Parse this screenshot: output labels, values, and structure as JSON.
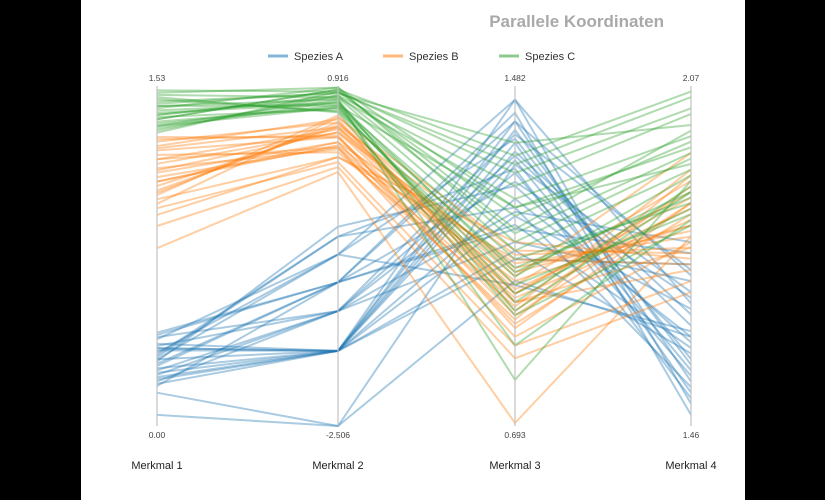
{
  "chart_data": {
    "type": "parallel-coordinates",
    "title": "Parallele Koordinaten",
    "legend_position": "top-center",
    "axes": [
      {
        "name": "Merkmal 1",
        "min_label": "0.00",
        "max_label": "1.53",
        "min": 0.0,
        "max": 1.53
      },
      {
        "name": "Merkmal 2",
        "min_label": "-2.506",
        "max_label": "0.916",
        "min": -2.506,
        "max": 0.916
      },
      {
        "name": "Merkmal 3",
        "min_label": "0.693",
        "max_label": "1.482",
        "min": 0.693,
        "max": 1.482
      },
      {
        "name": "Merkmal 4",
        "min_label": "1.46",
        "max_label": "2.07",
        "min": 1.46,
        "max": 2.07
      }
    ],
    "series": [
      {
        "name": "Spezies A",
        "color": "#1f77b4",
        "lines": [
          [
            0.05,
            -2.506,
            1.03,
            1.62
          ],
          [
            0.3,
            -1.75,
            1.35,
            1.52
          ],
          [
            0.35,
            -1.75,
            1.18,
            1.67
          ],
          [
            0.22,
            -1.75,
            1.1,
            1.59
          ],
          [
            0.18,
            -1.06,
            1.4,
            1.73
          ],
          [
            0.4,
            -1.35,
            1.28,
            1.55
          ],
          [
            0.26,
            -1.75,
            1.22,
            1.62
          ],
          [
            0.33,
            -0.78,
            1.45,
            1.5
          ],
          [
            0.15,
            -2.506,
            1.3,
            1.7
          ],
          [
            0.27,
            -1.06,
            1.15,
            1.77
          ],
          [
            0.37,
            -1.75,
            1.38,
            1.57
          ],
          [
            0.2,
            -1.35,
            1.32,
            1.64
          ],
          [
            0.31,
            -0.6,
            1.2,
            1.53
          ],
          [
            0.24,
            -1.75,
            1.08,
            1.75
          ],
          [
            0.42,
            -1.06,
            1.42,
            1.48
          ],
          [
            0.29,
            -0.5,
            1.25,
            1.61
          ],
          [
            0.34,
            -1.75,
            1.33,
            1.66
          ],
          [
            0.23,
            -1.35,
            1.12,
            1.72
          ],
          [
            0.39,
            -0.78,
            1.36,
            1.58
          ],
          [
            0.28,
            -1.06,
            1.26,
            1.69
          ],
          [
            0.21,
            -1.75,
            1.4,
            1.54
          ],
          [
            0.36,
            -1.35,
            1.19,
            1.79
          ],
          [
            0.32,
            -0.6,
            1.29,
            1.51
          ],
          [
            0.19,
            -1.75,
            1.45,
            1.68
          ],
          [
            0.41,
            -1.06,
            1.16,
            1.6
          ],
          [
            0.25,
            -1.35,
            1.37,
            1.74
          ],
          [
            0.3,
            -0.78,
            1.02,
            1.63
          ],
          [
            0.35,
            -1.75,
            1.31,
            1.56
          ]
        ]
      },
      {
        "name": "Spezies B",
        "color": "#ff7f0e",
        "lines": [
          [
            0.8,
            0.05,
            0.7,
            1.8
          ],
          [
            1.15,
            0.45,
            1.0,
            1.88
          ],
          [
            1.2,
            0.3,
            0.98,
            1.78
          ],
          [
            1.05,
            0.55,
            1.05,
            1.82
          ],
          [
            1.3,
            0.4,
            0.95,
            1.86
          ],
          [
            0.95,
            0.2,
            1.08,
            1.75
          ],
          [
            1.25,
            0.5,
            1.02,
            1.9
          ],
          [
            1.1,
            0.35,
            0.93,
            1.84
          ],
          [
            1.0,
            0.6,
            1.1,
            1.77
          ],
          [
            1.22,
            0.25,
            0.97,
            1.92
          ],
          [
            1.18,
            0.45,
            1.06,
            1.81
          ],
          [
            0.9,
            0.1,
            0.85,
            1.7
          ],
          [
            1.28,
            0.55,
            1.0,
            1.87
          ],
          [
            1.12,
            0.3,
            0.9,
            1.79
          ],
          [
            1.08,
            0.5,
            1.04,
            1.95
          ],
          [
            1.24,
            0.4,
            0.99,
            1.83
          ],
          [
            1.02,
            0.2,
            1.12,
            1.76
          ],
          [
            1.26,
            0.58,
            0.96,
            1.89
          ],
          [
            1.14,
            0.35,
            1.07,
            1.8
          ],
          [
            0.98,
            0.15,
            0.88,
            1.72
          ],
          [
            1.2,
            0.48,
            1.01,
            1.85
          ],
          [
            1.16,
            0.28,
            0.94,
            1.91
          ],
          [
            1.06,
            0.52,
            1.09,
            1.78
          ],
          [
            1.29,
            0.42,
            0.92,
            1.86
          ],
          [
            1.1,
            0.32,
            1.03,
            1.82
          ],
          [
            1.04,
            0.62,
            0.98,
            1.74
          ]
        ]
      },
      {
        "name": "Spezies C",
        "color": "#2ca02c",
        "lines": [
          [
            1.45,
            0.85,
            1.3,
            2.05
          ],
          [
            1.4,
            0.8,
            1.1,
            1.92
          ],
          [
            1.35,
            0.7,
            1.0,
            1.85
          ],
          [
            1.5,
            0.9,
            1.2,
            1.96
          ],
          [
            1.42,
            0.75,
            1.05,
            1.88
          ],
          [
            1.38,
            0.88,
            1.15,
            1.99
          ],
          [
            1.48,
            0.65,
            0.95,
            1.82
          ],
          [
            1.33,
            0.82,
            1.25,
            2.02
          ],
          [
            1.44,
            0.78,
            0.8,
            1.9
          ],
          [
            1.36,
            0.72,
            1.08,
            1.86
          ],
          [
            1.51,
            0.86,
            1.18,
            1.97
          ],
          [
            1.39,
            0.68,
            1.02,
            1.84
          ],
          [
            1.46,
            0.84,
            1.35,
            2.0
          ],
          [
            1.34,
            0.76,
            0.98,
            1.89
          ],
          [
            1.43,
            0.9,
            1.12,
            1.94
          ],
          [
            1.37,
            0.7,
            1.06,
            1.87
          ],
          [
            1.49,
            0.8,
            1.22,
            1.98
          ],
          [
            1.41,
            0.74,
            0.88,
            1.83
          ],
          [
            1.32,
            0.86,
            1.28,
            2.03
          ],
          [
            1.47,
            0.66,
            1.04,
            1.91
          ],
          [
            1.4,
            0.82,
            1.14,
            1.95
          ],
          [
            1.35,
            0.78,
            0.96,
            1.88
          ],
          [
            1.44,
            0.72,
            1.2,
            1.93
          ],
          [
            1.38,
            0.88,
            1.32,
            2.06
          ]
        ]
      }
    ]
  }
}
